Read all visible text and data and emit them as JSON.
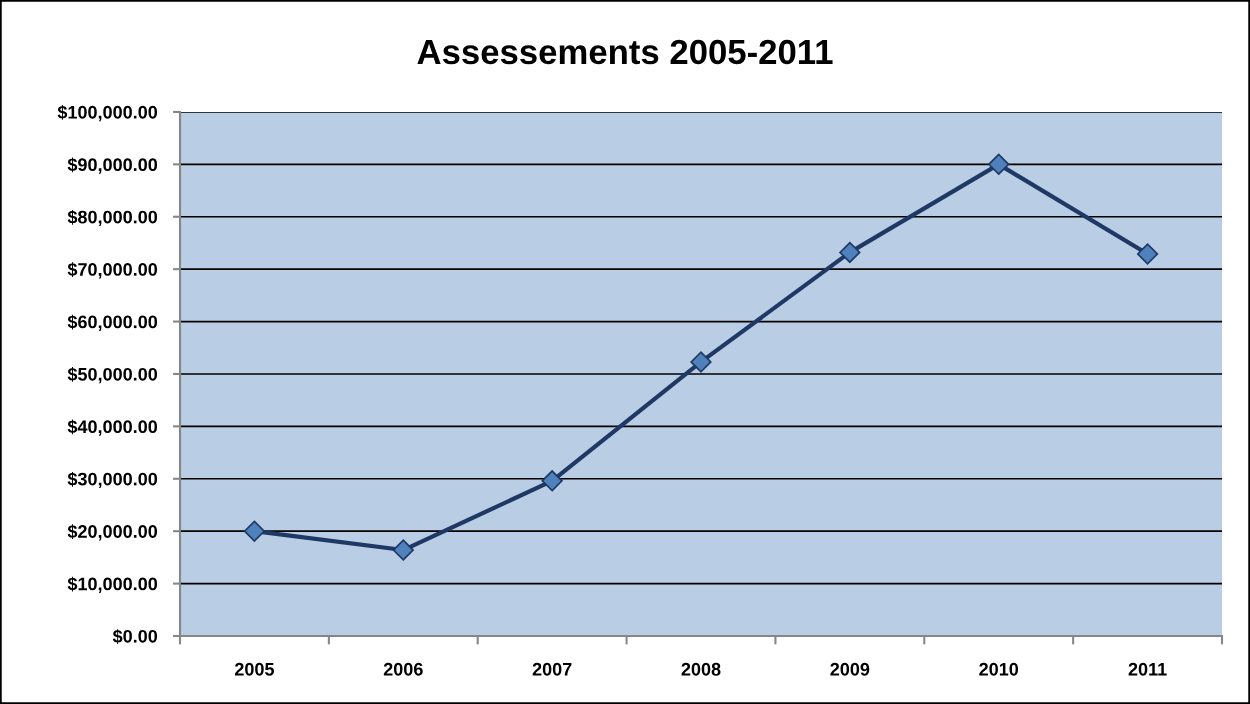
{
  "chart_data": {
    "type": "line",
    "title": "Assessements 2005-2011",
    "categories": [
      "2005",
      "2006",
      "2007",
      "2008",
      "2009",
      "2010",
      "2011"
    ],
    "series": [
      {
        "color": "#1f3864",
        "values": [
          20000,
          16400,
          29600,
          52300,
          73200,
          90000,
          72900
        ]
      }
    ],
    "ylim": [
      0,
      100000
    ],
    "yticks": [
      {
        "value": 0,
        "label": "$0.00"
      },
      {
        "value": 10000,
        "label": "$10,000.00"
      },
      {
        "value": 20000,
        "label": "$20,000.00"
      },
      {
        "value": 30000,
        "label": "$30,000.00"
      },
      {
        "value": 40000,
        "label": "$40,000.00"
      },
      {
        "value": 50000,
        "label": "$50,000.00"
      },
      {
        "value": 60000,
        "label": "$60,000.00"
      },
      {
        "value": 70000,
        "label": "$70,000.00"
      },
      {
        "value": 80000,
        "label": "$80,000.00"
      },
      {
        "value": 90000,
        "label": "$90,000.00"
      },
      {
        "value": 100000,
        "label": "$100,000.00"
      }
    ],
    "grid": "y",
    "marker": "diamond",
    "line_style": "solid"
  }
}
